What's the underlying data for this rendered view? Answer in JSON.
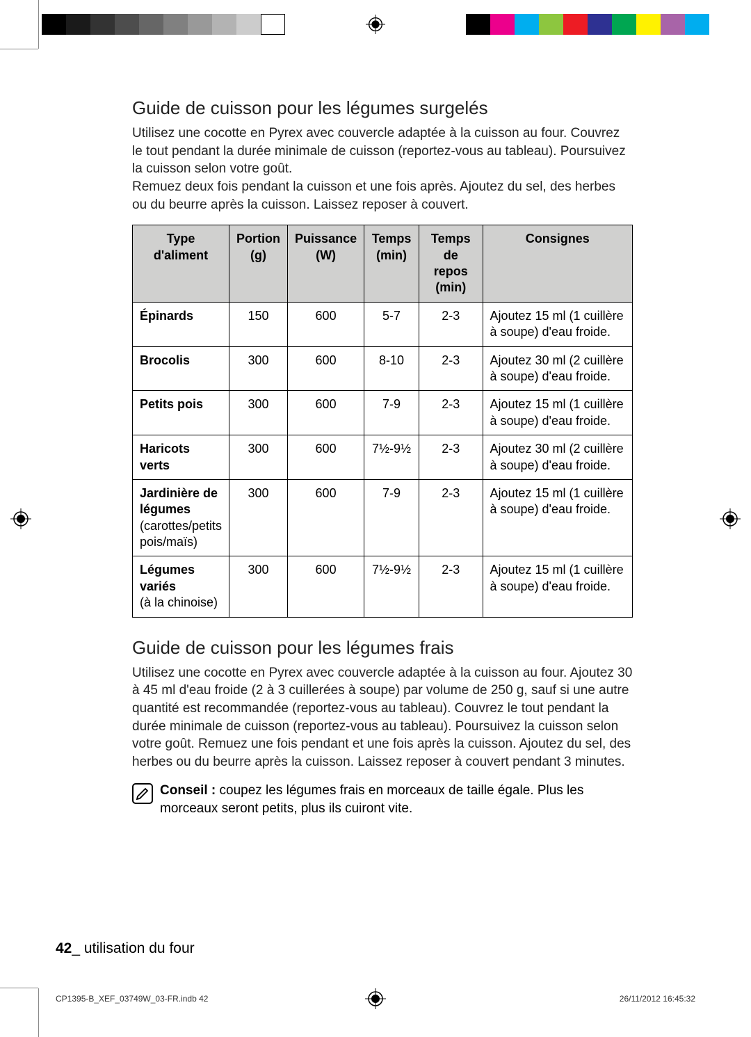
{
  "print_marks": {
    "gray_scale": [
      "#000000",
      "#1a1a1a",
      "#333333",
      "#4d4d4d",
      "#666666",
      "#808080",
      "#999999",
      "#b3b3b3",
      "#cccccc",
      "#ffffff"
    ],
    "color_bars": [
      "#000000",
      "#ec008c",
      "#00aeef",
      "#8dc63f",
      "#ed1c24",
      "#2e3192",
      "#00a651",
      "#fff200",
      "#a864a8",
      "#00adef"
    ]
  },
  "section1": {
    "title": "Guide de cuisson pour les légumes surgelés",
    "intro": "Utilisez une cocotte en Pyrex avec couvercle adaptée à la cuisson au four. Couvrez le tout pendant la durée minimale de cuisson (reportez-vous au tableau). Poursuivez la cuisson selon votre goût.\nRemuez deux fois pendant la cuisson et une fois après. Ajoutez du sel, des herbes ou du beurre après la cuisson. Laissez reposer à couvert.",
    "table": {
      "headers": [
        "Type d'aliment",
        "Portion (g)",
        "Puissance (W)",
        "Temps (min)",
        "Temps de repos (min)",
        "Consignes"
      ],
      "col_widths": [
        "19%",
        "11%",
        "14%",
        "11%",
        "13%",
        "32%"
      ],
      "rows": [
        {
          "name_bold": "Épinards",
          "name_sub": "",
          "portion": "150",
          "power": "600",
          "time": "5-7",
          "rest": "2-3",
          "instr": "Ajoutez 15 ml (1 cuillère à soupe) d'eau froide."
        },
        {
          "name_bold": "Brocolis",
          "name_sub": "",
          "portion": "300",
          "power": "600",
          "time": "8-10",
          "rest": "2-3",
          "instr": "Ajoutez 30 ml (2 cuillère à soupe) d'eau froide."
        },
        {
          "name_bold": "Petits pois",
          "name_sub": "",
          "portion": "300",
          "power": "600",
          "time": "7-9",
          "rest": "2-3",
          "instr": "Ajoutez 15 ml (1 cuillère à soupe) d'eau froide."
        },
        {
          "name_bold": "Haricots verts",
          "name_sub": "",
          "portion": "300",
          "power": "600",
          "time": "7½-9½",
          "rest": "2-3",
          "instr": "Ajoutez 30 ml (2 cuillère à soupe) d'eau froide."
        },
        {
          "name_bold": "Jardinière de légumes",
          "name_sub": "(carottes/petits pois/maïs)",
          "portion": "300",
          "power": "600",
          "time": "7-9",
          "rest": "2-3",
          "instr": "Ajoutez 15 ml (1 cuillère à soupe) d'eau froide."
        },
        {
          "name_bold": "Légumes variés",
          "name_sub": "(à la chinoise)",
          "portion": "300",
          "power": "600",
          "time": "7½-9½",
          "rest": "2-3",
          "instr": "Ajoutez 15 ml (1 cuillère à soupe) d'eau froide."
        }
      ]
    }
  },
  "section2": {
    "title": "Guide de cuisson pour les légumes frais",
    "intro": "Utilisez une cocotte en Pyrex avec couvercle adaptée à la cuisson au four. Ajoutez 30 à 45 ml d'eau froide (2 à 3 cuillerées à soupe) par volume de 250 g, sauf si une autre quantité est recommandée (reportez-vous au tableau). Couvrez le tout pendant la durée minimale de cuisson (reportez-vous au tableau). Poursuivez la cuisson selon votre goût. Remuez une fois pendant et une fois après la cuisson. Ajoutez du sel, des herbes ou du beurre après la cuisson. Laissez reposer à couvert pendant 3 minutes.",
    "tip_label": "Conseil :",
    "tip_text": " coupez les légumes frais en morceaux de taille égale. Plus les morceaux seront petits, plus ils cuiront vite."
  },
  "footer": {
    "page_num": "42",
    "page_label": "_ utilisation du four"
  },
  "imprint": {
    "left": "CP1395-B_XEF_03749W_03-FR.indb   42",
    "right": "26/11/2012   16:45:32"
  },
  "colors": {
    "header_bg": "#d0d0cf",
    "text": "#222222",
    "border": "#000000"
  }
}
